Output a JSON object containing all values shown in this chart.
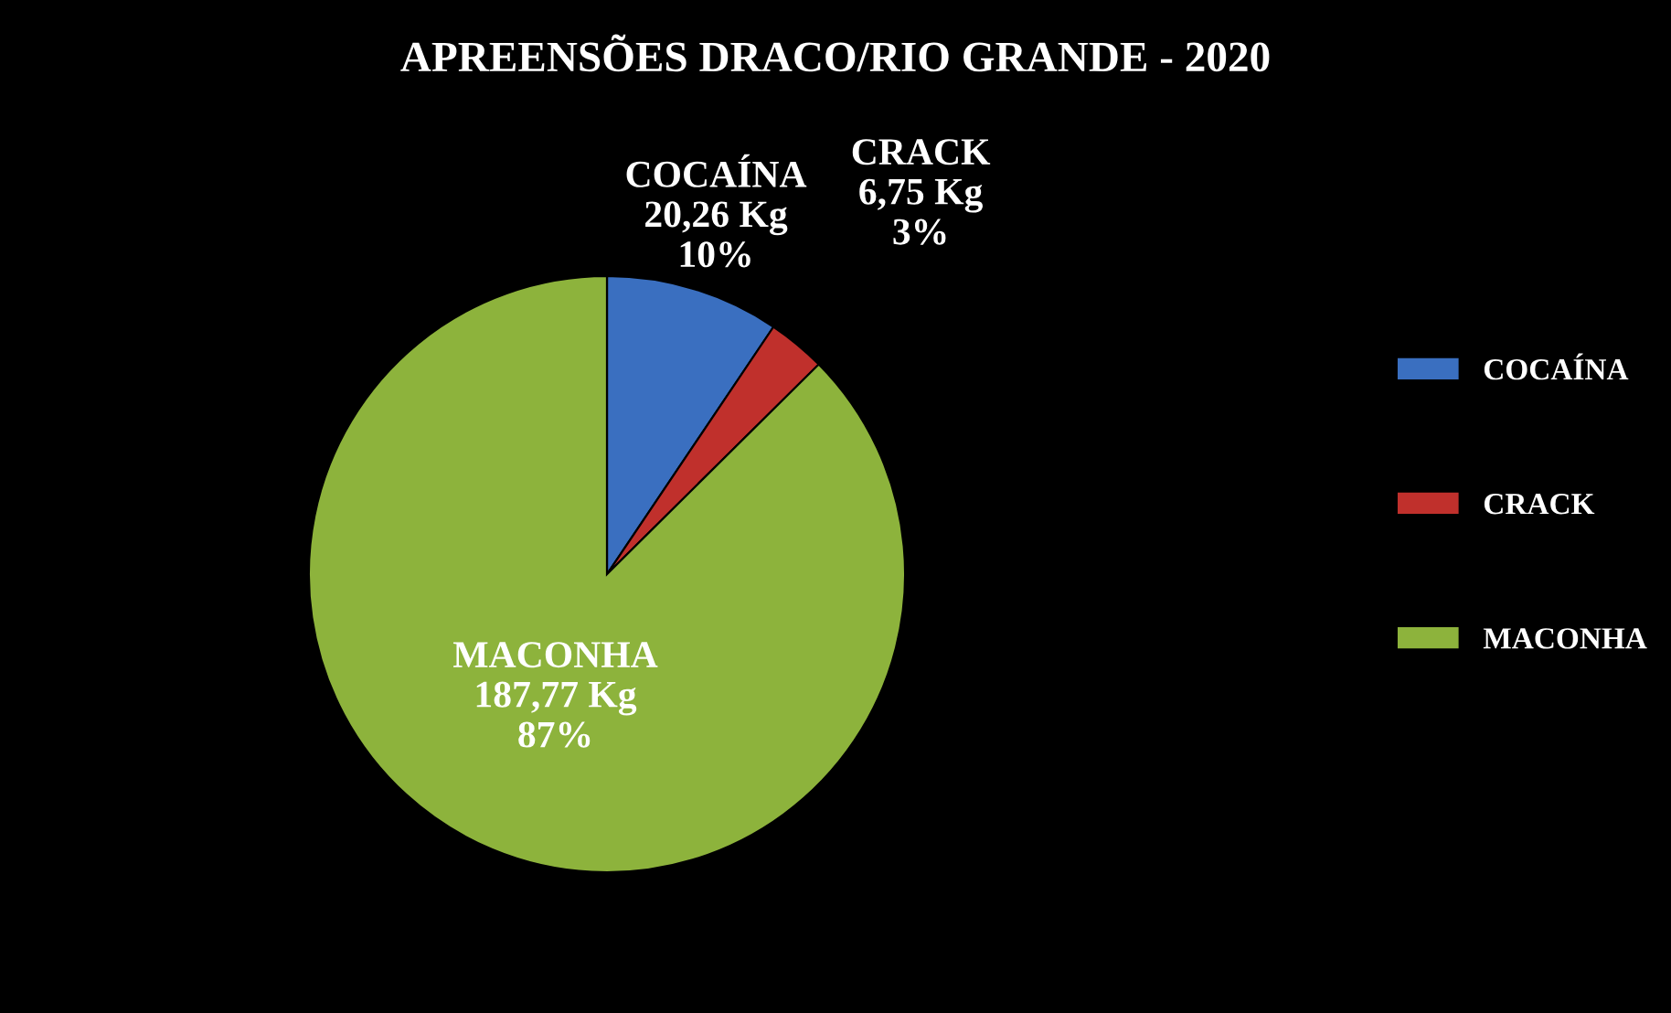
{
  "chart_data": {
    "type": "pie",
    "title": "APREENSÕES DRACO/RIO GRANDE - 2020",
    "categories": [
      "COCAÍNA",
      "CRACK",
      "MACONHA"
    ],
    "values": [
      20.26,
      6.75,
      187.77
    ],
    "colors": [
      "#3a6fc0",
      "#c0302c",
      "#8db33c"
    ],
    "value_labels": [
      "20,26 Kg\n10%",
      "6,75 Kg\n3%",
      "187,77 Kg\n87%"
    ],
    "legend": "right"
  }
}
